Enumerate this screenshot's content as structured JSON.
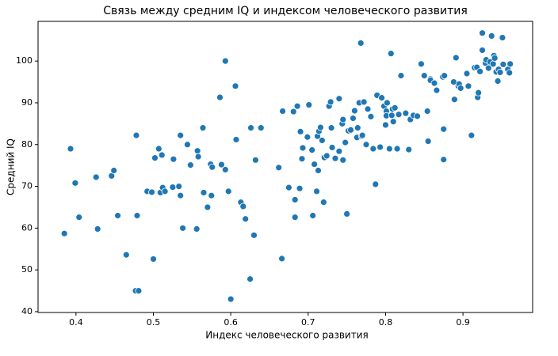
{
  "chart_data": {
    "type": "scatter",
    "title": "Связь между средним IQ и индексом человеческого развития",
    "x_label": "Индекс человеческого развития",
    "y_label": "Средний IQ",
    "color": "#1f77b4",
    "xlim": [
      0.351,
      0.99
    ],
    "ylim": [
      39.8,
      109.5
    ],
    "xticks": [
      0.4,
      0.5,
      0.6,
      0.7,
      0.8,
      0.9
    ],
    "yticks": [
      40,
      50,
      60,
      70,
      80,
      90,
      100
    ],
    "x": [
      0.385,
      0.393,
      0.399,
      0.404,
      0.426,
      0.428,
      0.446,
      0.449,
      0.454,
      0.465,
      0.477,
      0.478,
      0.479,
      0.481,
      0.492,
      0.498,
      0.5,
      0.502,
      0.507,
      0.509,
      0.511,
      0.512,
      0.515,
      0.525,
      0.526,
      0.533,
      0.535,
      0.535,
      0.538,
      0.544,
      0.548,
      0.556,
      0.557,
      0.558,
      0.564,
      0.565,
      0.57,
      0.574,
      0.575,
      0.576,
      0.586,
      0.588,
      0.593,
      0.593,
      0.597,
      0.6,
      0.606,
      0.607,
      0.613,
      0.616,
      0.619,
      0.625,
      0.626,
      0.63,
      0.632,
      0.639,
      0.662,
      0.666,
      0.667,
      0.675,
      0.681,
      0.683,
      0.683,
      0.686,
      0.689,
      0.69,
      0.692,
      0.693,
      0.699,
      0.701,
      0.705,
      0.706,
      0.708,
      0.711,
      0.712,
      0.713,
      0.714,
      0.716,
      0.718,
      0.72,
      0.721,
      0.724,
      0.727,
      0.729,
      0.73,
      0.731,
      0.735,
      0.74,
      0.74,
      0.744,
      0.745,
      0.745,
      0.748,
      0.75,
      0.752,
      0.755,
      0.758,
      0.76,
      0.763,
      0.764,
      0.766,
      0.768,
      0.769,
      0.77,
      0.772,
      0.775,
      0.777,
      0.781,
      0.784,
      0.787,
      0.789,
      0.793,
      0.795,
      0.798,
      0.8,
      0.801,
      0.801,
      0.802,
      0.805,
      0.807,
      0.808,
      0.809,
      0.81,
      0.812,
      0.815,
      0.817,
      0.82,
      0.826,
      0.83,
      0.832,
      0.836,
      0.841,
      0.846,
      0.85,
      0.854,
      0.855,
      0.858,
      0.858,
      0.863,
      0.866,
      0.874,
      0.875,
      0.875,
      0.876,
      0.888,
      0.889,
      0.891,
      0.894,
      0.895,
      0.897,
      0.905,
      0.907,
      0.911,
      0.915,
      0.918,
      0.919,
      0.92,
      0.922,
      0.925,
      0.925,
      0.929,
      0.93,
      0.933,
      0.935,
      0.937,
      0.939,
      0.94,
      0.941,
      0.943,
      0.945,
      0.946,
      0.948,
      0.951,
      0.952,
      0.958,
      0.96,
      0.961
    ],
    "values": [
      58.7,
      79,
      70.8,
      62.6,
      72.2,
      59.8,
      72.5,
      73.8,
      63,
      53.6,
      45,
      82.2,
      63,
      45,
      68.8,
      68.6,
      52.6,
      76.8,
      79,
      68.5,
      77.5,
      69.7,
      68.8,
      69.8,
      76.5,
      70,
      82.2,
      67.8,
      60,
      80,
      75.1,
      59.8,
      78.5,
      77.1,
      84,
      68.5,
      65,
      75.3,
      67.8,
      74.6,
      91.3,
      75.2,
      74,
      100,
      68.8,
      43,
      94,
      81.2,
      66.2,
      65.2,
      62.2,
      47.8,
      84,
      58.3,
      76.3,
      84,
      74.5,
      52.7,
      88,
      69.7,
      87.9,
      62.6,
      66.8,
      89.2,
      69.5,
      83.1,
      76.6,
      79.2,
      81.8,
      89.5,
      78.7,
      63,
      75.3,
      68.8,
      82,
      73.8,
      83.2,
      84.1,
      81,
      66.2,
      76.9,
      77.3,
      89.2,
      90.2,
      84,
      79.3,
      76.7,
      78.4,
      91,
      85,
      86,
      76.3,
      80.5,
      63.4,
      83.3,
      83.5,
      86.3,
      88.1,
      81.7,
      84,
      90,
      104.3,
      82,
      82.2,
      90.2,
      80,
      88.5,
      86.7,
      79,
      70.5,
      91.8,
      79.4,
      91.2,
      89.2,
      84.7,
      88,
      86.9,
      90,
      79,
      101.8,
      87,
      88.5,
      85.5,
      88.8,
      79,
      87.2,
      96.5,
      87.5,
      78.8,
      86,
      87,
      86.8,
      99.3,
      96.5,
      88,
      80.8,
      95.7,
      95.4,
      94.7,
      93,
      96.2,
      83.7,
      76.4,
      96.5,
      95,
      90.8,
      100.8,
      94,
      94.5,
      93.5,
      97,
      94,
      82.2,
      98.4,
      98.5,
      91.3,
      92.4,
      97.5,
      106.7,
      102.6,
      99.5,
      100.3,
      98.3,
      99.8,
      106,
      99.3,
      101.3,
      100.7,
      97.4,
      95.2,
      98,
      97.3,
      105.6,
      99.2,
      98,
      97.2,
      99.3
    ]
  }
}
